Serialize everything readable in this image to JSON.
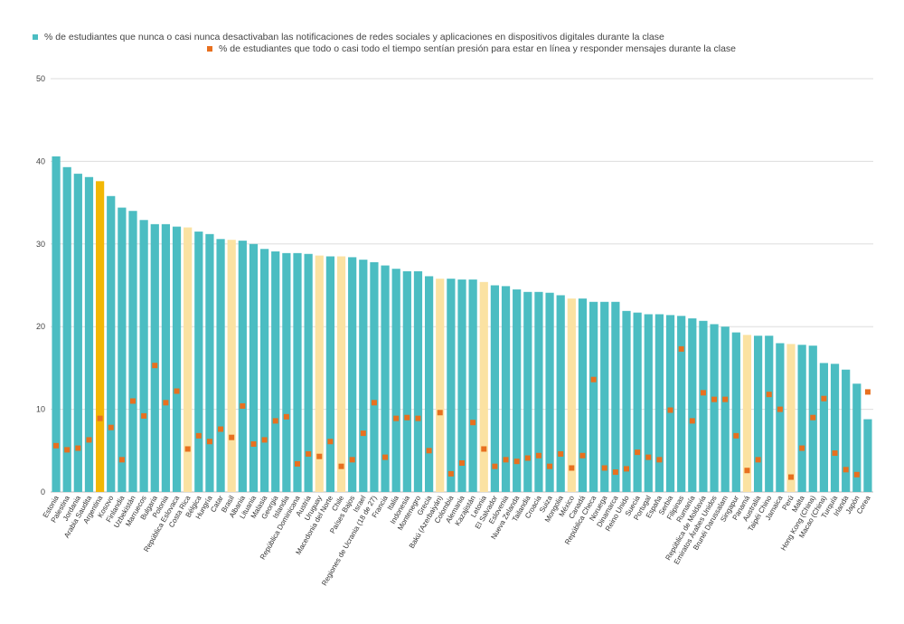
{
  "chart_data": {
    "type": "bar",
    "title": "",
    "xlabel": "",
    "ylabel": "",
    "ylim": [
      0,
      50
    ],
    "yticks": [
      0,
      10,
      20,
      30,
      40,
      50
    ],
    "grid": true,
    "legend_placement": "top-left",
    "categories": [
      "Estonia",
      "Palestina",
      "Jordania",
      "Arabia Saudita",
      "Argentina",
      "Kosovo",
      "Finlandia",
      "Uzbekistán",
      "Marruecos",
      "Bulgaria",
      "Polonia",
      "República Eslovaca",
      "Costa Rica",
      "Bélgica",
      "Hungría",
      "Catar",
      "Brasil",
      "Albania",
      "Lituania",
      "Malasia",
      "Georgia",
      "Islandia",
      "República Dominicana",
      "Austria",
      "Uruguay",
      "Macedonia del Norte",
      "Chile",
      "Países Bajos",
      "Israel",
      "Regiones de Ucrania (18 de 27)",
      "Francia",
      "Italia",
      "Indonesia",
      "Montenegro",
      "Grecia",
      "Bakú (Azerbaiyán)",
      "Colombia",
      "Alemania",
      "Kazajistán",
      "Letonia",
      "El Salvador",
      "Eslovenia",
      "Nueva Zelanda",
      "Tailandia",
      "Croacia",
      "Suiza",
      "Mongolia",
      "México",
      "Canadá",
      "República Checa",
      "Noruega",
      "Dinamarca",
      "Reino Unido",
      "Suecia",
      "Portugal",
      "España",
      "Serbia",
      "Filipinas",
      "Rumanía",
      "República de Moldavia",
      "Emiratos Árabes Unidos",
      "Brunéi Darussalam",
      "Singapur",
      "Panamá",
      "Australia",
      "Taipéi Chino",
      "Jamaica",
      "Perú",
      "Malta",
      "Hong Kong (China)",
      "Macao (China)",
      "Turquía",
      "Irlanda",
      "Japón",
      "Corea"
    ],
    "highlight": [
      "normal",
      "normal",
      "normal",
      "normal",
      "strong",
      "normal",
      "normal",
      "normal",
      "normal",
      "normal",
      "normal",
      "normal",
      "light",
      "normal",
      "normal",
      "normal",
      "light",
      "normal",
      "normal",
      "normal",
      "normal",
      "normal",
      "normal",
      "normal",
      "light",
      "normal",
      "light",
      "normal",
      "normal",
      "normal",
      "normal",
      "normal",
      "normal",
      "normal",
      "normal",
      "light",
      "normal",
      "normal",
      "normal",
      "light",
      "normal",
      "normal",
      "normal",
      "normal",
      "normal",
      "normal",
      "normal",
      "light",
      "normal",
      "normal",
      "normal",
      "normal",
      "normal",
      "normal",
      "normal",
      "normal",
      "normal",
      "normal",
      "normal",
      "normal",
      "normal",
      "normal",
      "normal",
      "light",
      "normal",
      "normal",
      "normal",
      "light",
      "normal",
      "normal",
      "normal",
      "normal",
      "normal",
      "normal",
      "normal"
    ],
    "series": [
      {
        "name": "% de estudiantes que nunca o casi nunca desactivaban las notificaciones de redes sociales y aplicaciones en dispositivos digitales durante la clase",
        "kind": "bar",
        "color": "#4bbdc2",
        "values": [
          40.6,
          39.3,
          38.5,
          38.1,
          37.6,
          35.8,
          34.4,
          34.0,
          32.9,
          32.4,
          32.4,
          32.1,
          32.0,
          31.5,
          31.2,
          30.6,
          30.5,
          30.4,
          30.0,
          29.4,
          29.1,
          28.9,
          28.9,
          28.8,
          28.6,
          28.5,
          28.5,
          28.4,
          28.1,
          27.8,
          27.4,
          27.0,
          26.7,
          26.7,
          26.1,
          25.8,
          25.8,
          25.7,
          25.7,
          25.4,
          25.0,
          24.9,
          24.5,
          24.2,
          24.2,
          24.1,
          23.8,
          23.4,
          23.4,
          23.0,
          23.0,
          23.0,
          21.9,
          21.7,
          21.5,
          21.5,
          21.4,
          21.3,
          21.0,
          20.7,
          20.3,
          20.0,
          19.3,
          19.0,
          18.9,
          18.9,
          18.0,
          17.9,
          17.8,
          17.7,
          15.6,
          15.5,
          14.8,
          13.1,
          8.8
        ]
      },
      {
        "name": "% de estudiantes que todo o casi todo el tiempo sentían presión para estar en línea y responder mensajes durante la clase",
        "kind": "marker",
        "color": "#e8701f",
        "values": [
          5.6,
          5.1,
          5.3,
          6.3,
          8.9,
          7.8,
          3.9,
          11.0,
          9.2,
          15.3,
          10.8,
          12.2,
          5.2,
          6.8,
          6.1,
          7.6,
          6.6,
          10.4,
          5.8,
          6.3,
          8.6,
          9.1,
          3.4,
          4.6,
          4.3,
          6.1,
          3.1,
          3.9,
          7.1,
          10.8,
          4.2,
          8.9,
          9.0,
          8.9,
          5.0,
          9.6,
          2.2,
          3.5,
          8.4,
          5.2,
          3.1,
          3.9,
          3.7,
          4.1,
          4.4,
          3.1,
          4.6,
          2.9,
          4.4,
          13.6,
          2.9,
          2.4,
          2.8,
          4.8,
          4.2,
          3.9,
          9.9,
          17.3,
          8.6,
          12.0,
          11.2,
          11.2,
          6.8,
          2.6,
          3.9,
          11.8,
          10.0,
          1.8,
          5.3,
          9.0,
          11.3,
          4.7,
          2.7,
          2.1,
          12.1
        ]
      }
    ],
    "colors": {
      "bar": "#4bbdc2",
      "bar_highlight_strong": "#f2b705",
      "bar_highlight_light": "#fbe2a2",
      "marker": "#e8701f",
      "grid": "#dddddd",
      "text": "#444444"
    }
  }
}
